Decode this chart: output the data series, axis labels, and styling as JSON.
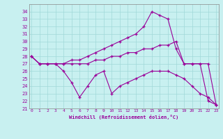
{
  "xlabel": "Windchill (Refroidissement éolien,°C)",
  "bg_color": "#c8f0f0",
  "line_color": "#990099",
  "ylim": [
    21,
    35
  ],
  "xlim": [
    0,
    23
  ],
  "yticks": [
    21,
    22,
    23,
    24,
    25,
    26,
    27,
    28,
    29,
    30,
    31,
    32,
    33,
    34
  ],
  "xticks": [
    0,
    1,
    2,
    3,
    4,
    5,
    6,
    7,
    8,
    9,
    10,
    11,
    12,
    13,
    14,
    15,
    16,
    17,
    18,
    19,
    20,
    21,
    22,
    23
  ],
  "series": [
    {
      "x": [
        0,
        1,
        2,
        3,
        4,
        5,
        6,
        7,
        8,
        9,
        10,
        11,
        12,
        13,
        14,
        15,
        16,
        17,
        18,
        19,
        20,
        21,
        22,
        23
      ],
      "y": [
        28,
        27,
        27,
        27,
        27,
        27.5,
        27.5,
        28,
        28.5,
        29,
        29.5,
        30,
        30.5,
        31,
        32,
        34,
        33.5,
        33,
        29,
        27,
        27,
        27,
        27,
        21.5
      ]
    },
    {
      "x": [
        0,
        1,
        2,
        3,
        4,
        5,
        6,
        7,
        8,
        9,
        10,
        11,
        12,
        13,
        14,
        15,
        16,
        17,
        18,
        19,
        20,
        21,
        22,
        23
      ],
      "y": [
        28,
        27,
        27,
        27,
        27,
        27,
        27,
        27,
        27.5,
        27.5,
        28,
        28,
        28.5,
        28.5,
        29,
        29,
        29.5,
        29.5,
        30,
        27,
        27,
        27,
        22,
        21.5
      ]
    },
    {
      "x": [
        0,
        1,
        2,
        3,
        4,
        5,
        6,
        7,
        8,
        9,
        10,
        11,
        12,
        13,
        14,
        15,
        16,
        17,
        18,
        19,
        20,
        21,
        22,
        23
      ],
      "y": [
        28,
        27,
        27,
        27,
        26,
        24.5,
        22.5,
        24,
        25.5,
        26,
        23,
        24,
        24.5,
        25,
        25.5,
        26,
        26,
        26,
        25.5,
        25,
        24,
        23,
        22.5,
        21.5
      ]
    }
  ]
}
